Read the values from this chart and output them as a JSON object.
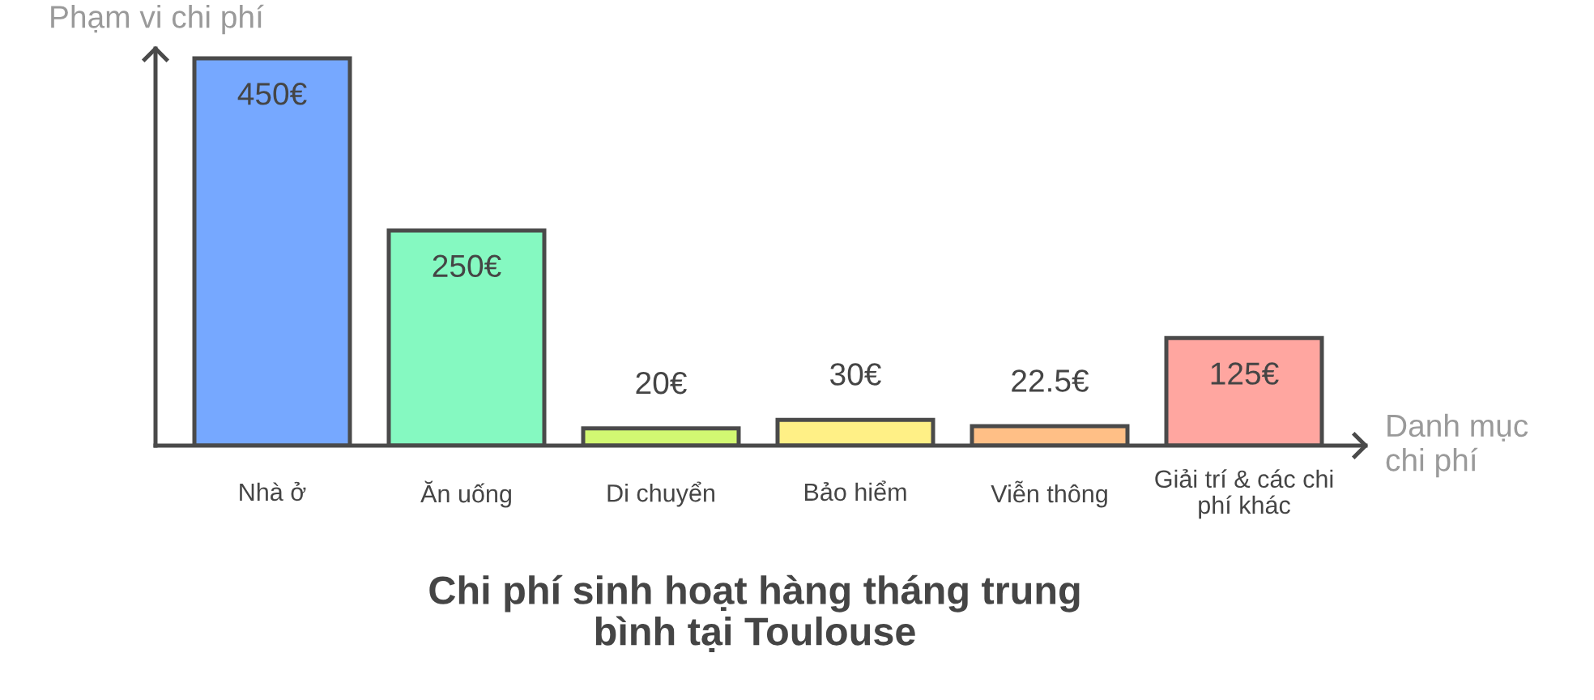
{
  "chart_data": {
    "type": "bar",
    "title": "Chi phí sinh hoạt hàng tháng trung bình tại Toulouse",
    "xlabel": "Danh mục chi phí",
    "ylabel": "Phạm vi chi phí",
    "categories": [
      "Nhà ở",
      "Ăn uống",
      "Di chuyển",
      "Bảo hiểm",
      "Viễn thông",
      "Giải trí & các chi phí khác"
    ],
    "values": [
      450,
      250,
      20,
      30,
      22.5,
      125
    ],
    "colors": [
      "#76a8ff",
      "#85f9c1",
      "#d2f872",
      "#fff086",
      "#ffbf86",
      "#ffa6a0"
    ],
    "value_labels": [
      "450€",
      "250€",
      "20€",
      "30€",
      "22.5€",
      "125€"
    ],
    "tick_labels": "x"
  }
}
